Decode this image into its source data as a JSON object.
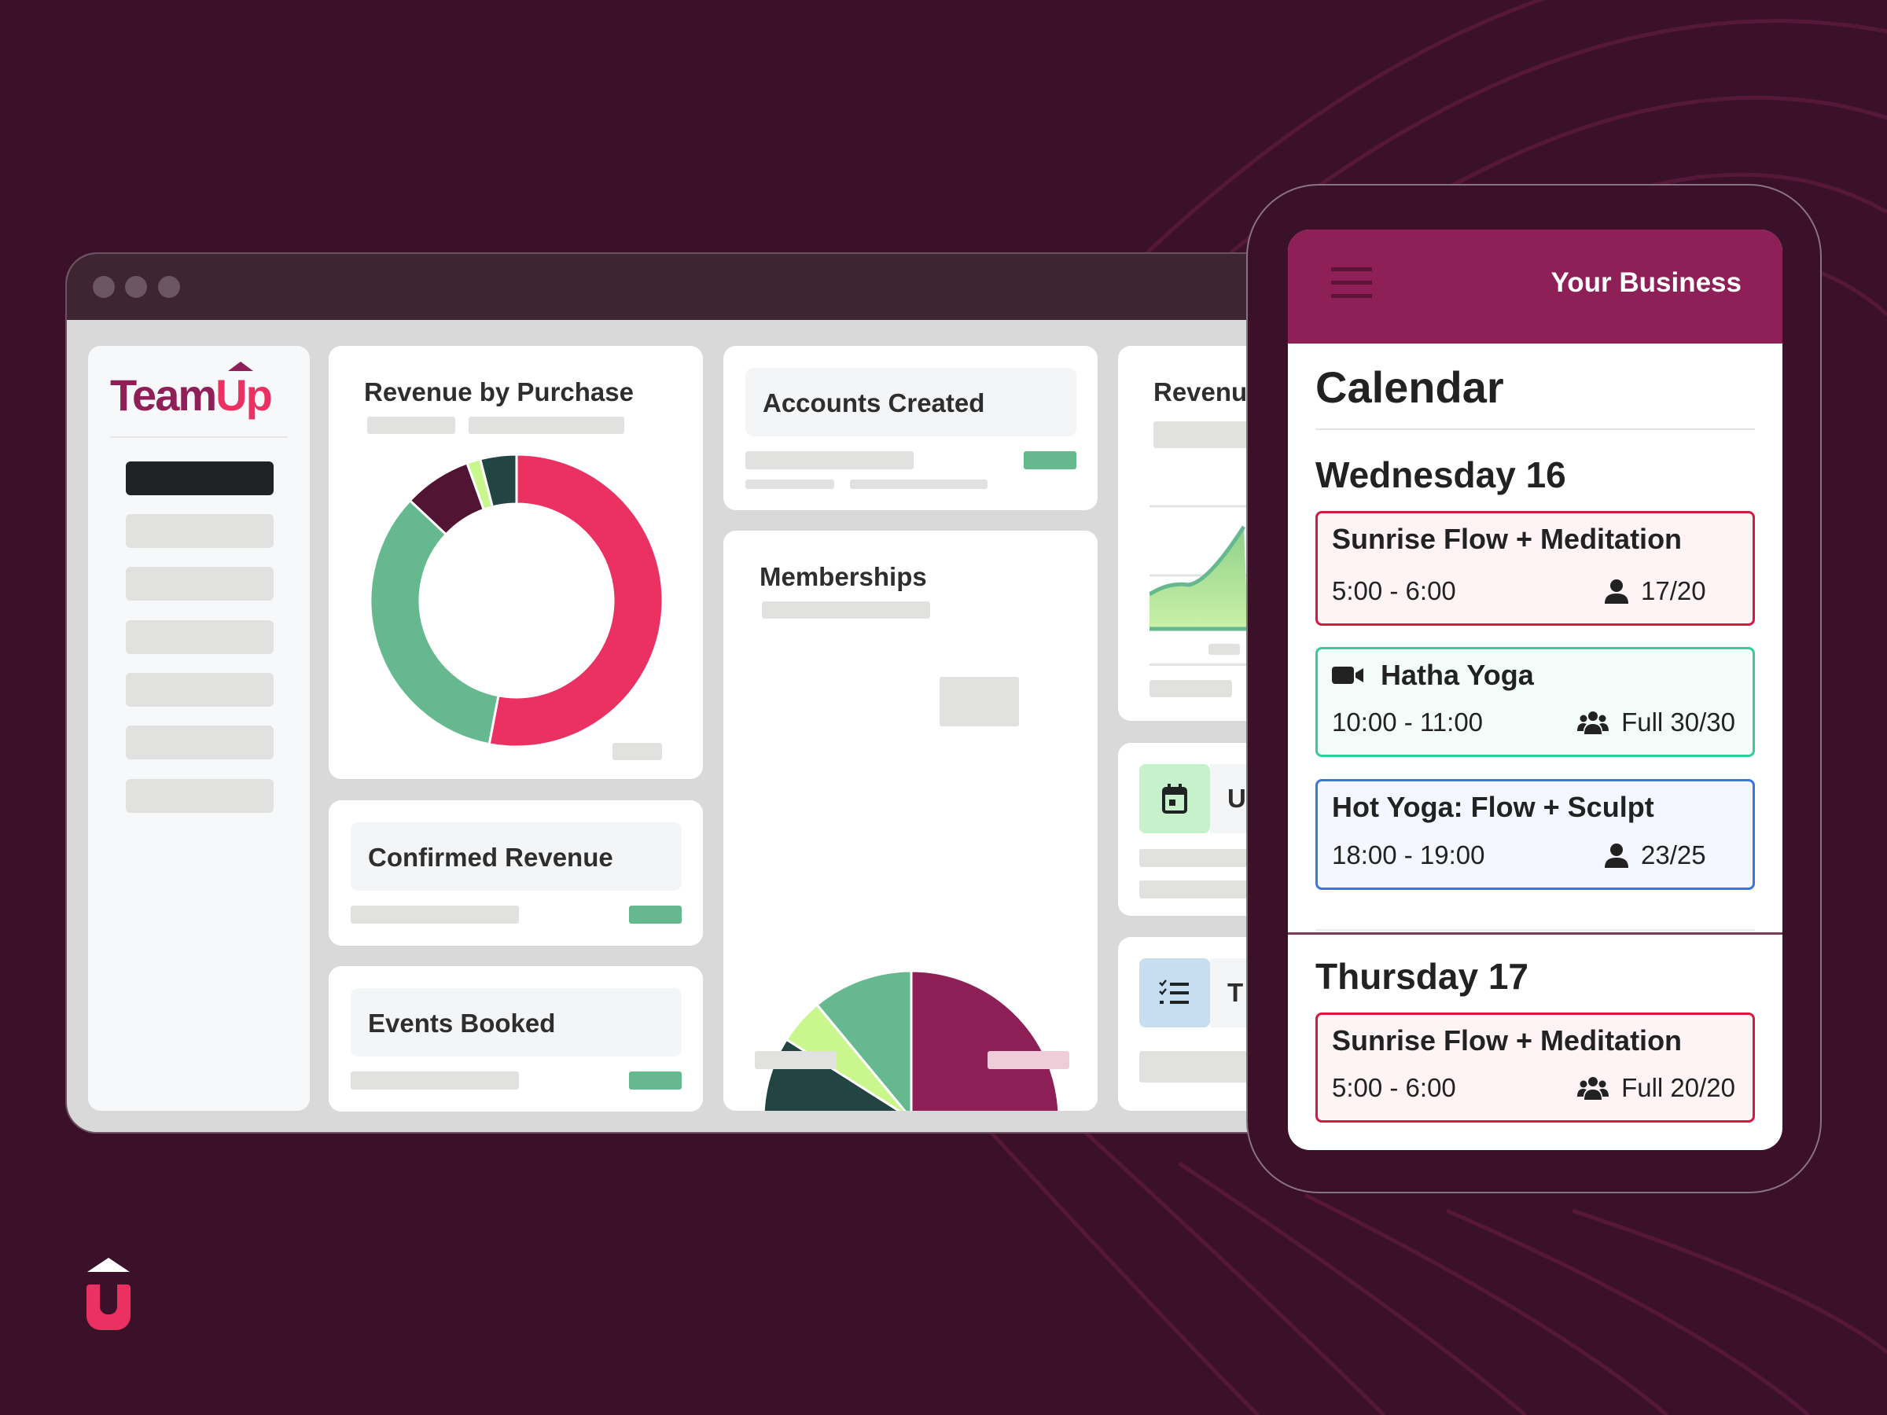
{
  "colors": {
    "background": "#3a1129",
    "brand": "#8e1f57",
    "accent_pink": "#eb3062",
    "green": "#66b98f"
  },
  "dashboard": {
    "logo_text": "TeamUp",
    "revenue_by_purchase": {
      "title": "Revenue by Purchase"
    },
    "accounts_created": {
      "title": "Accounts Created"
    },
    "confirmed_revenue": {
      "title": "Confirmed Revenue"
    },
    "events_booked": {
      "title": "Events Booked"
    },
    "memberships": {
      "title": "Memberships"
    },
    "revenue_partial": {
      "title": "Revenu"
    },
    "card_u": {
      "title": "U",
      "icon": "calendar-icon"
    },
    "card_t": {
      "title": "T",
      "icon": "checklist-icon"
    }
  },
  "chart_data": [
    {
      "type": "pie",
      "variant": "donut",
      "values": [
        53,
        34,
        7.5,
        1.5,
        4
      ],
      "colors": [
        "#eb3062",
        "#66b98f",
        "#521433",
        "#caf78d",
        "#224543"
      ]
    },
    {
      "type": "pie",
      "values": [
        37,
        22.5,
        14.5,
        10,
        5,
        11
      ],
      "colors": [
        "#8e1f57",
        "#eb3062",
        "#521433",
        "#224543",
        "#caf78d",
        "#66b98f"
      ]
    }
  ],
  "phone": {
    "business_name": "Your Business",
    "page_title": "Calendar",
    "days": [
      {
        "label": "Wednesday 16",
        "events": [
          {
            "title": "Sunrise Flow + Meditation",
            "time": "5:00 - 6:00",
            "capacity": "17/20",
            "icon": "person-icon",
            "border": "#d6193f",
            "bg": "#fff4f5"
          },
          {
            "title": "Hatha Yoga",
            "time": "10:00 - 11:00",
            "capacity": "Full 30/30",
            "icon": "group-icon",
            "video": true,
            "border": "#33cc9a",
            "bg": "#f3fcf8"
          },
          {
            "title": "Hot Yoga: Flow + Sculpt",
            "time": "18:00 - 19:00",
            "capacity": "23/25",
            "icon": "person-icon",
            "border": "#3a76e0",
            "bg": "#f4f7ff"
          }
        ]
      },
      {
        "label": "Thursday 17",
        "events": [
          {
            "title": "Sunrise Flow + Meditation",
            "time": "5:00 - 6:00",
            "capacity": "Full 20/20",
            "icon": "group-icon",
            "border": "#d6193f",
            "bg": "#fff4f5"
          }
        ]
      }
    ]
  }
}
